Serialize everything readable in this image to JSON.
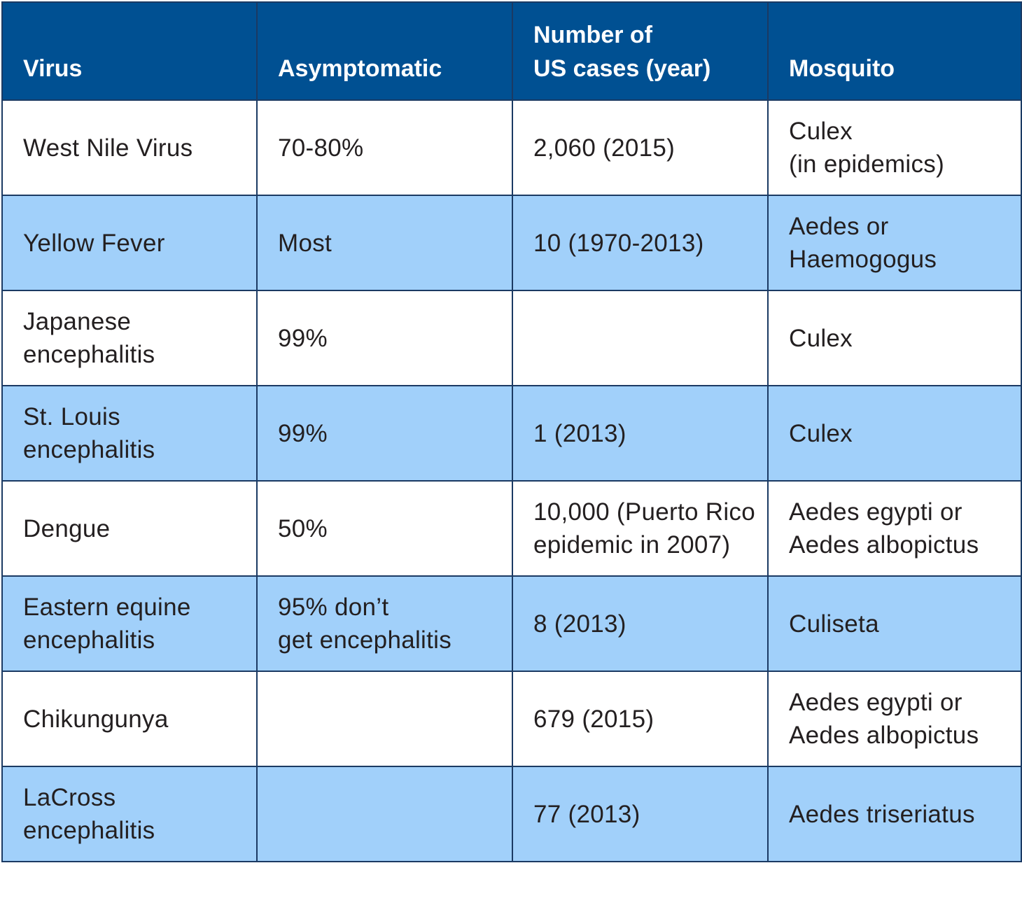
{
  "table": {
    "headers": {
      "virus": "Virus",
      "asymptomatic": "Asymptomatic",
      "cases": "Number of\nUS cases (year)",
      "mosquito": "Mosquito"
    },
    "rows": [
      {
        "virus": "West Nile Virus",
        "asymptomatic": "70-80%",
        "cases": "2,060 (2015)",
        "mosquito": "Culex\n(in epidemics)"
      },
      {
        "virus": "Yellow Fever",
        "asymptomatic": "Most",
        "cases": "10 (1970-2013)",
        "mosquito": "Aedes or\nHaemogogus"
      },
      {
        "virus": "Japanese\nencephalitis",
        "asymptomatic": "99%",
        "cases": "",
        "mosquito": "Culex"
      },
      {
        "virus": "St. Louis\nencephalitis",
        "asymptomatic": "99%",
        "cases": "1 (2013)",
        "mosquito": "Culex"
      },
      {
        "virus": "Dengue",
        "asymptomatic": "50%",
        "cases": "10,000 (Puerto Rico\nepidemic in 2007)",
        "mosquito": "Aedes egypti or\nAedes albopictus"
      },
      {
        "virus": "Eastern equine\nencephalitis",
        "asymptomatic": "95% don’t\nget encephalitis",
        "cases": "8 (2013)",
        "mosquito": "Culiseta"
      },
      {
        "virus": "Chikungunya",
        "asymptomatic": "",
        "cases": "679 (2015)",
        "mosquito": "Aedes egypti or\nAedes albopictus"
      },
      {
        "virus": "LaCross\nencephalitis",
        "asymptomatic": "",
        "cases": "77 (2013)",
        "mosquito": "Aedes triseriatus"
      }
    ]
  },
  "colors": {
    "header_background": "#005092",
    "header_text": "#ffffff",
    "stripe_background": "#a1d0fa",
    "row_background": "#ffffff",
    "border": "#1b3a63",
    "body_text": "#231f20"
  }
}
